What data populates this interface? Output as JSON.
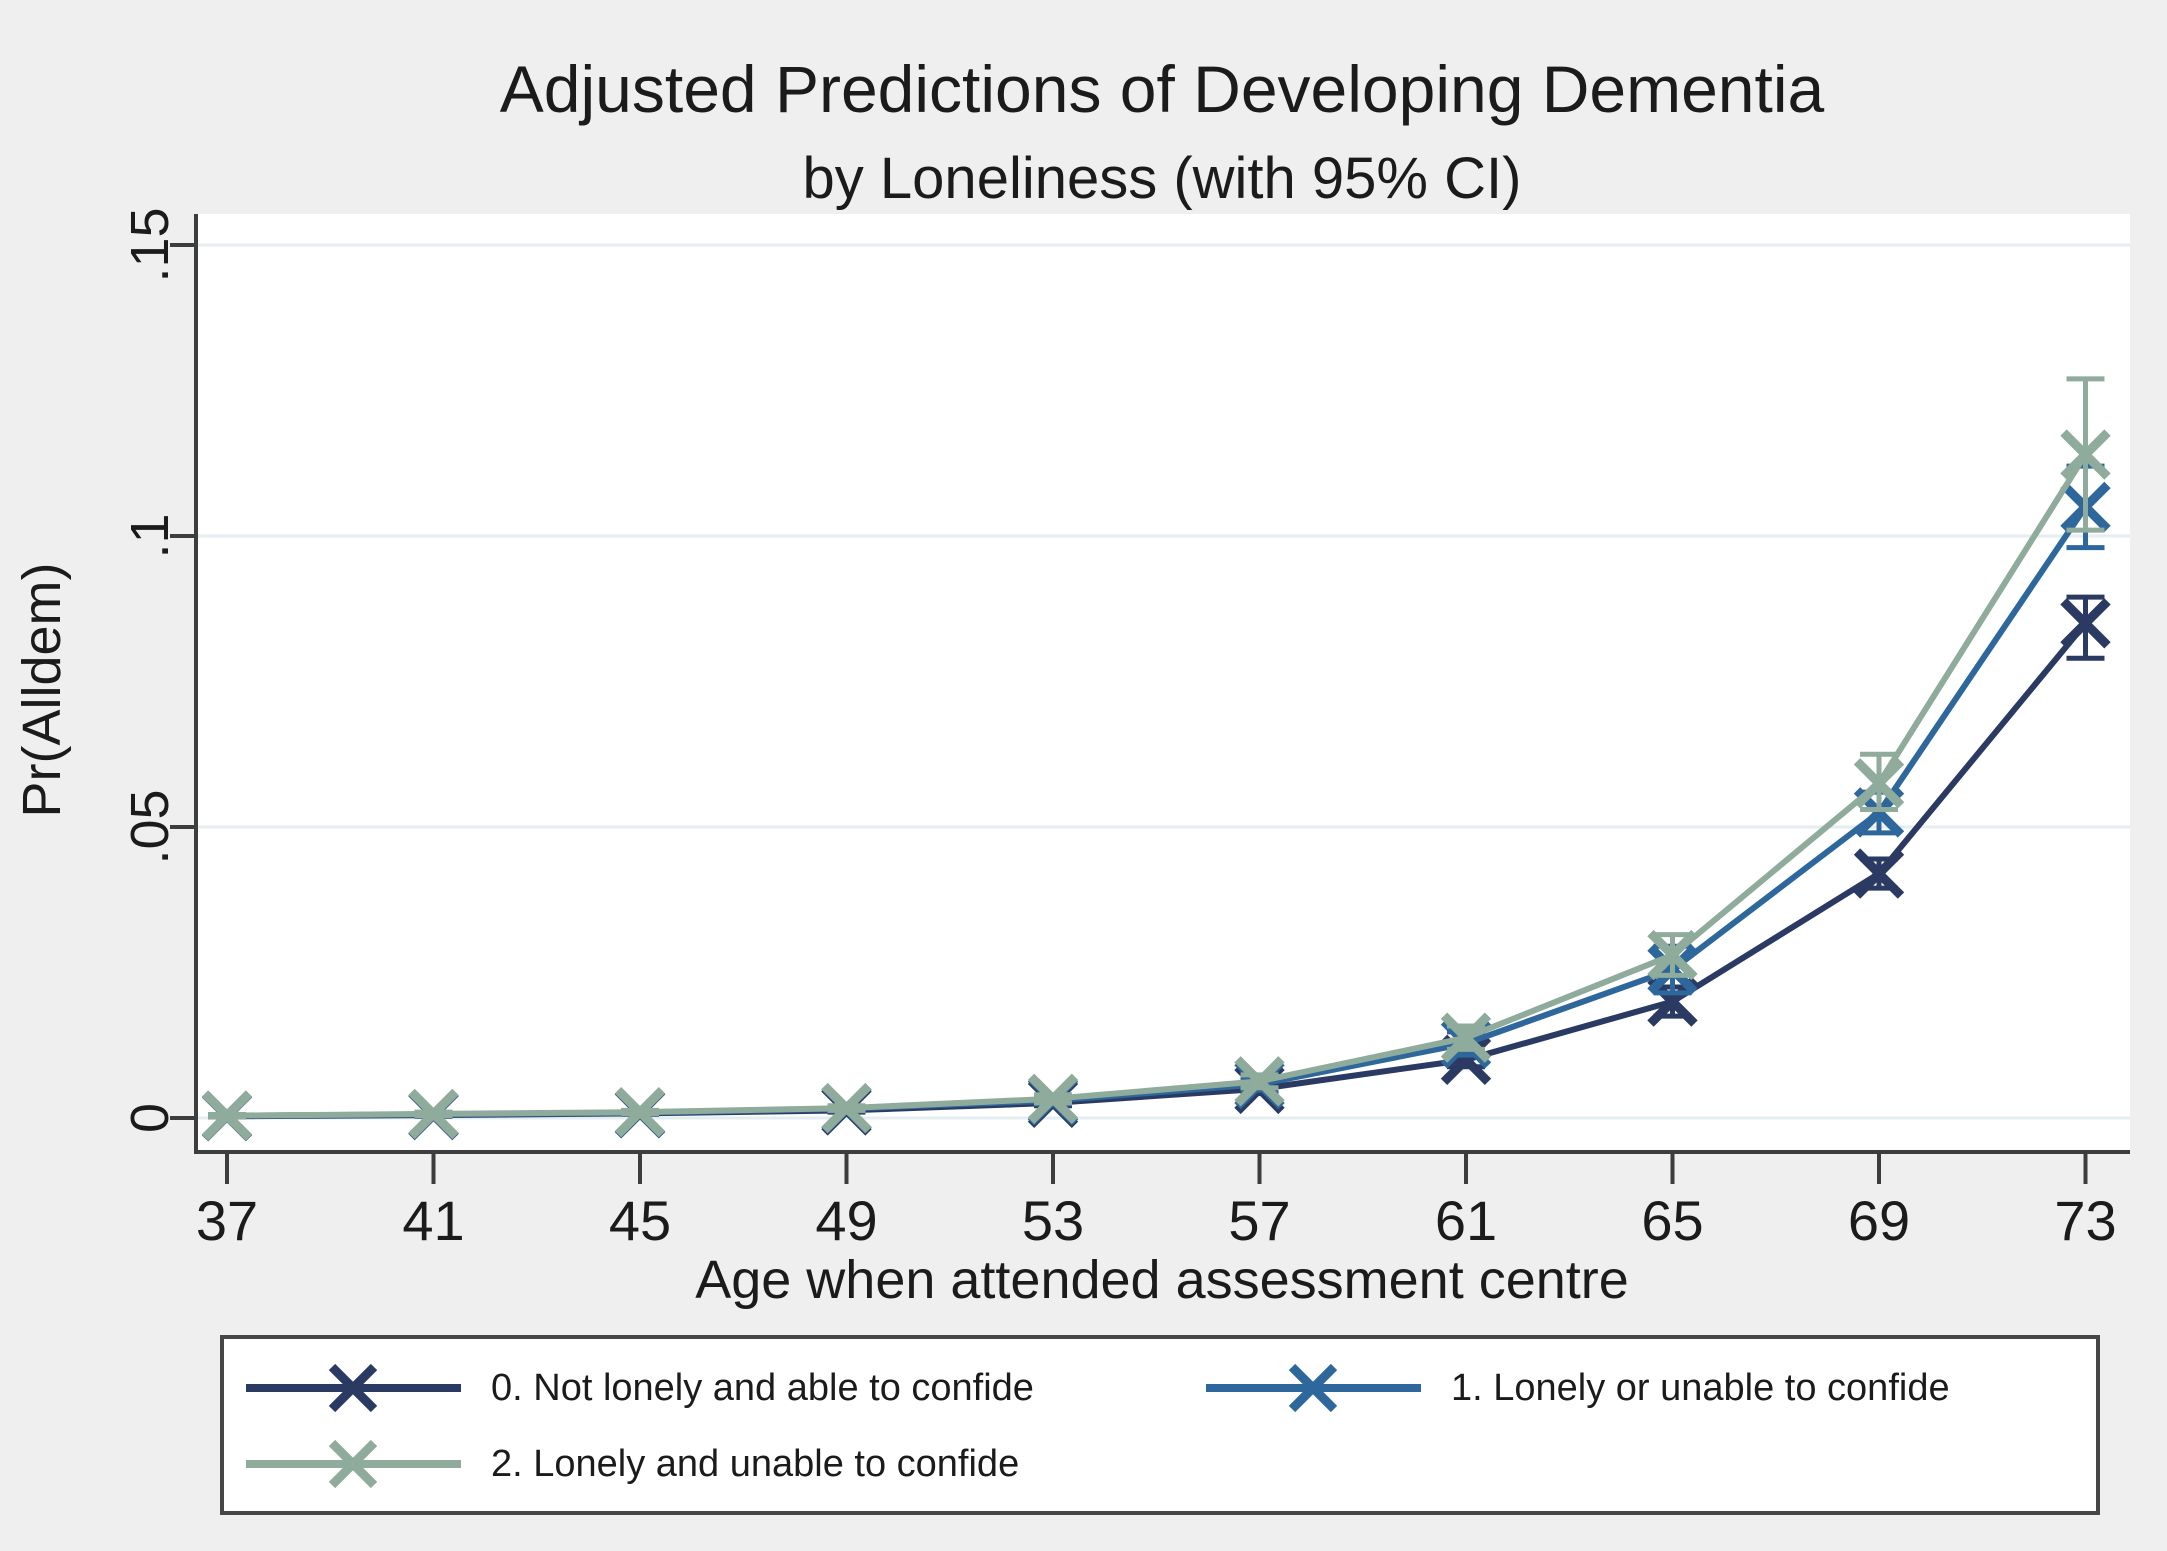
{
  "figure": {
    "title": "Adjusted Predictions of Developing Dementia",
    "subtitle": "by Loneliness (with 95% CI)"
  },
  "chart_data": {
    "type": "line",
    "title": "Adjusted Predictions of Developing Dementia",
    "subtitle": "by Loneliness (with 95% CI)",
    "xlabel": "Age when attended assessment centre",
    "ylabel": "Pr(Alldem)",
    "x": [
      37,
      41,
      45,
      49,
      53,
      57,
      61,
      65,
      69,
      73
    ],
    "x_tick_labels": [
      "37",
      "41",
      "45",
      "49",
      "53",
      "57",
      "61",
      "65",
      "69",
      "73"
    ],
    "y_ticks": [
      0,
      0.05,
      0.1,
      0.15
    ],
    "y_tick_labels": [
      "0",
      ".05",
      ".1",
      ".15"
    ],
    "xlim": [
      37,
      73
    ],
    "ylim": [
      0,
      0.15
    ],
    "grid": "horizontal",
    "legend_position": "bottom",
    "marker": "x",
    "error_bars": "95% CI",
    "colors": {
      "background": "#efefef",
      "plot_background": "#ffffff",
      "gridline": "#e4eef1",
      "axis": "#3d3d3d",
      "text": "#1b1b1b"
    },
    "series": [
      {
        "name": "0. Not lonely and able to confide",
        "color": "#2a3a62",
        "values": [
          0.0003,
          0.0005,
          0.0008,
          0.0013,
          0.0026,
          0.005,
          0.01,
          0.02,
          0.042,
          0.085
        ],
        "ci_low": [
          0.0002,
          0.0003,
          0.0006,
          0.001,
          0.0021,
          0.0042,
          0.0088,
          0.0175,
          0.0395,
          0.079
        ],
        "ci_high": [
          0.0004,
          0.0007,
          0.0011,
          0.0016,
          0.0031,
          0.0058,
          0.0112,
          0.0225,
          0.0445,
          0.0895
        ]
      },
      {
        "name": "1. Lonely or unable to confide",
        "color": "#2d679b",
        "values": [
          0.0004,
          0.0006,
          0.0009,
          0.0016,
          0.003,
          0.0058,
          0.0128,
          0.0255,
          0.0525,
          0.105
        ],
        "ci_low": [
          0.0002,
          0.0004,
          0.0006,
          0.0012,
          0.0024,
          0.0048,
          0.0108,
          0.0215,
          0.049,
          0.098
        ],
        "ci_high": [
          0.0006,
          0.0008,
          0.0012,
          0.002,
          0.0036,
          0.0068,
          0.0148,
          0.0295,
          0.056,
          0.112
        ]
      },
      {
        "name": "2. Lonely and unable to confide",
        "color": "#8eab9b",
        "values": [
          0.0004,
          0.0007,
          0.001,
          0.0017,
          0.0033,
          0.0063,
          0.0138,
          0.028,
          0.0575,
          0.114
        ],
        "ci_low": [
          0.0002,
          0.0004,
          0.0007,
          0.0013,
          0.0026,
          0.0052,
          0.0118,
          0.0245,
          0.053,
          0.101
        ],
        "ci_high": [
          0.0006,
          0.001,
          0.0013,
          0.0021,
          0.004,
          0.0074,
          0.0158,
          0.0315,
          0.0625,
          0.127
        ]
      }
    ]
  }
}
